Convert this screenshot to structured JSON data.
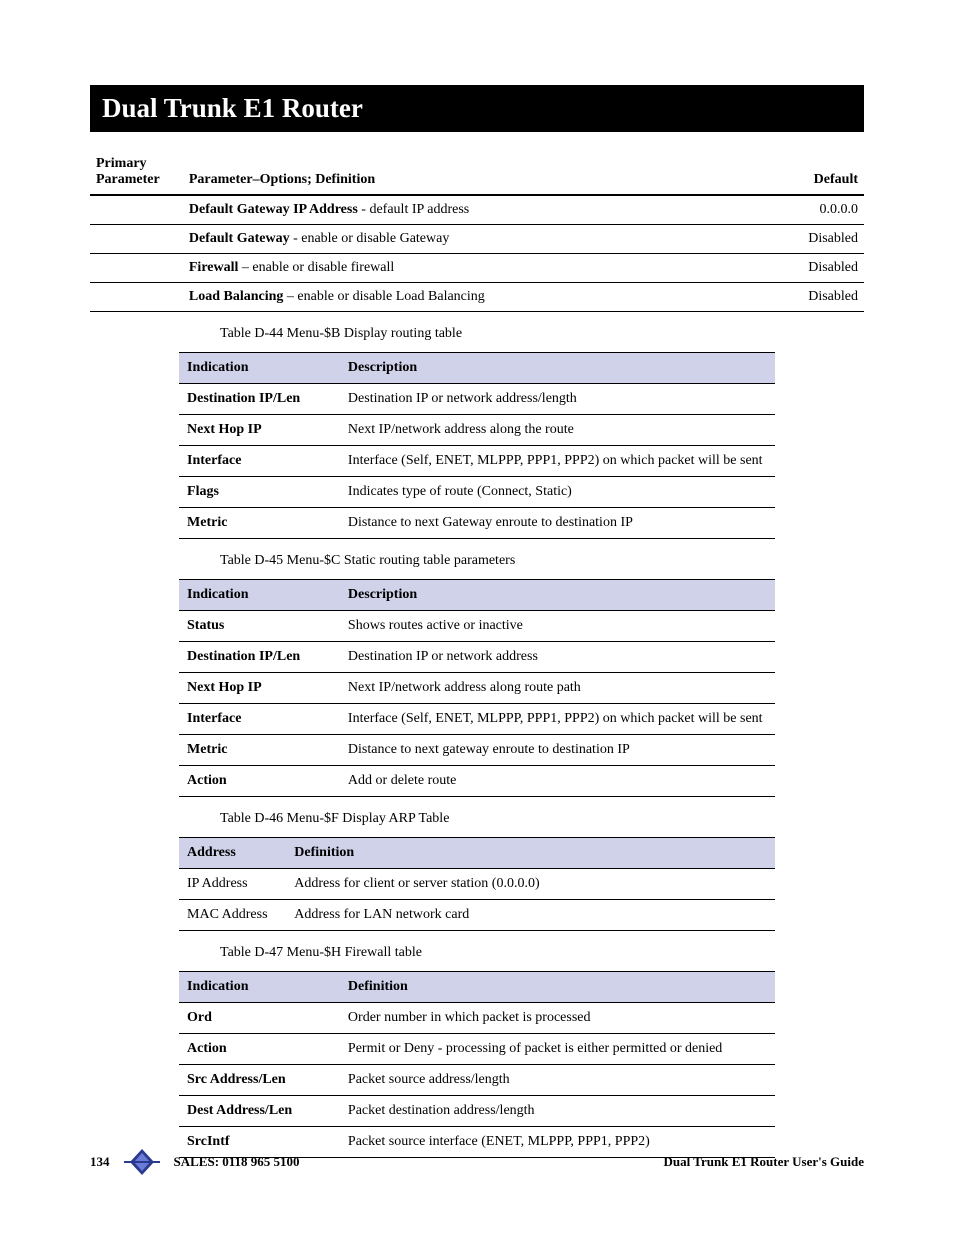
{
  "title": "Dual Trunk E1 Router",
  "param_table": {
    "headers": {
      "c1": "Primary Parameter",
      "c2": "Parameter–Options; Definition",
      "c3": "Default"
    },
    "rows": [
      {
        "bold": "Default Gateway IP Address",
        "rest": " - default IP address",
        "def": "0.0.0.0"
      },
      {
        "bold": "Default Gateway",
        "rest": " - enable or disable Gateway",
        "def": "Disabled"
      },
      {
        "bold": "Firewall",
        "rest": " – enable or disable firewall",
        "def": "Disabled"
      },
      {
        "bold": "Load Balancing",
        "rest": " – enable or disable Load Balancing",
        "def": "Disabled"
      }
    ]
  },
  "caption44": "Table D-44 Menu-$B Display routing table",
  "table44": {
    "headers": {
      "c1": "Indication",
      "c2": "Description"
    },
    "rows": [
      {
        "c1": "Destination IP/Len",
        "c2": "Destination IP or network address/length"
      },
      {
        "c1": "Next Hop IP",
        "c2": "Next IP/network address along the route"
      },
      {
        "c1": "Interface",
        "c2": "Interface (Self, ENET, MLPPP, PPP1, PPP2) on which packet will be sent"
      },
      {
        "c1": "Flags",
        "c2": "Indicates type of route (Connect, Static)"
      },
      {
        "c1": "Metric",
        "c2": "Distance to next Gateway enroute to destination IP"
      }
    ]
  },
  "caption45": "Table D-45 Menu-$C Static routing table parameters",
  "table45": {
    "headers": {
      "c1": "Indication",
      "c2": "Description"
    },
    "rows": [
      {
        "c1": "Status",
        "c2": "Shows routes active or inactive"
      },
      {
        "c1": "Destination IP/Len",
        "c2": "Destination IP or network address"
      },
      {
        "c1": "Next Hop IP",
        "c2": "Next IP/network address along route path"
      },
      {
        "c1": "Interface",
        "c2": "Interface (Self, ENET, MLPPP, PPP1, PPP2) on which packet will be sent"
      },
      {
        "c1": "Metric",
        "c2": "Distance to next gateway enroute to destination IP"
      },
      {
        "c1": "Action",
        "c2": "Add or delete route"
      }
    ]
  },
  "caption46": "Table D-46 Menu-$F Display ARP Table",
  "table46": {
    "headers": {
      "c1": "Address",
      "c2": "Definition"
    },
    "rows": [
      {
        "c1": "IP Address",
        "c2": "Address for client or server station (0.0.0.0)"
      },
      {
        "c1": "MAC Address",
        "c2": "Address for LAN network card"
      }
    ]
  },
  "caption47": "Table D-47 Menu-$H Firewall table",
  "table47": {
    "headers": {
      "c1": "Indication",
      "c2": "Definition"
    },
    "rows": [
      {
        "c1": "Ord",
        "c2": "Order number in which packet is processed"
      },
      {
        "c1": "Action",
        "c2": "Permit or Deny - processing of packet is either permitted or denied"
      },
      {
        "c1": "Src Address/Len",
        "c2": "Packet source address/length"
      },
      {
        "c1": "Dest Address/Len",
        "c2": "Packet destination address/length"
      },
      {
        "c1": "SrcIntf",
        "c2": "Packet source interface (ENET, MLPPP, PPP1, PPP2)"
      }
    ]
  },
  "footer": {
    "page": "134",
    "sales": "SALES: 0118 965 5100",
    "guide": "Dual Trunk E1 Router User's Guide"
  },
  "logo_colors": {
    "a": "#2a3b8f",
    "b": "#3a4fb5"
  }
}
